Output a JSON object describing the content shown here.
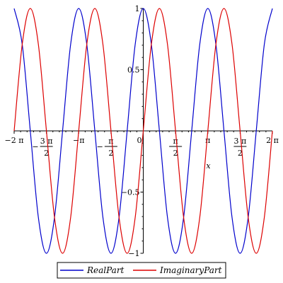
{
  "chart_data": {
    "type": "line",
    "title": "",
    "xlabel": "x",
    "ylabel": "",
    "xlim": [
      -6.2832,
      6.2832
    ],
    "ylim": [
      -1,
      1
    ],
    "grid": false,
    "legend_position": "bottom",
    "x_ticks": [
      {
        "value": -6.2832,
        "label": "−2 π",
        "kind": "plain"
      },
      {
        "value": -4.7124,
        "num": "3 π",
        "den": "2",
        "sign": "−",
        "kind": "frac"
      },
      {
        "value": -3.1416,
        "label": "−π",
        "kind": "plain"
      },
      {
        "value": -1.5708,
        "num": "π",
        "den": "2",
        "sign": "−",
        "kind": "frac"
      },
      {
        "value": 0,
        "label": "0",
        "kind": "plain"
      },
      {
        "value": 1.5708,
        "num": "π",
        "den": "2",
        "sign": "",
        "kind": "frac"
      },
      {
        "value": 3.1416,
        "label": "π",
        "kind": "plain"
      },
      {
        "value": 4.7124,
        "num": "3 π",
        "den": "2",
        "sign": "",
        "kind": "frac"
      },
      {
        "value": 6.2832,
        "label": "2 π",
        "kind": "plain"
      }
    ],
    "y_ticks": [
      {
        "value": 1,
        "label": "1"
      },
      {
        "value": 0.5,
        "label": "0.5"
      },
      {
        "value": -0.5,
        "label": "−0.5"
      },
      {
        "value": -1,
        "label": "−1"
      }
    ],
    "x": [
      -6.2832,
      -5.8905,
      -5.4978,
      -5.1051,
      -4.7124,
      -4.3197,
      -3.927,
      -3.5343,
      -3.1416,
      -2.7489,
      -2.3562,
      -1.9635,
      -1.5708,
      -1.1781,
      -0.7854,
      -0.3927,
      0,
      0.3927,
      0.7854,
      1.1781,
      1.5708,
      1.9635,
      2.3562,
      2.7489,
      3.1416,
      3.5343,
      3.927,
      4.3197,
      4.7124,
      5.1051,
      5.4978,
      5.8905,
      6.2832
    ],
    "series": [
      {
        "name": "RealPart",
        "color": "#0000cc",
        "values": [
          1,
          0.7071,
          0,
          -0.7071,
          -1,
          -0.7071,
          0,
          0.7071,
          1,
          0.7071,
          0,
          -0.7071,
          -1,
          -0.7071,
          0,
          0.7071,
          1,
          0.7071,
          0,
          -0.7071,
          -1,
          -0.7071,
          0,
          0.7071,
          1,
          0.7071,
          0,
          -0.7071,
          -1,
          -0.7071,
          0,
          0.7071,
          1
        ]
      },
      {
        "name": "ImaginaryPart",
        "color": "#dd0000",
        "values": [
          0,
          0.7071,
          1,
          0.7071,
          0,
          -0.7071,
          -1,
          -0.7071,
          0,
          0.7071,
          1,
          0.7071,
          0,
          -0.7071,
          -1,
          -0.7071,
          0,
          0.7071,
          1,
          0.7071,
          0,
          -0.7071,
          -1,
          -0.7071,
          0,
          0.7071,
          1,
          0.7071,
          0,
          -0.7071,
          -1,
          -0.7071,
          0
        ]
      }
    ]
  }
}
